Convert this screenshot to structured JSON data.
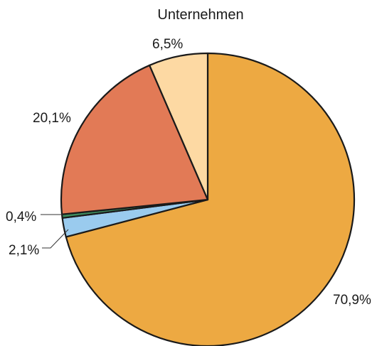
{
  "chart_data": {
    "type": "pie",
    "title": "Unternehmen",
    "start_angle_deg": 0,
    "direction": "clockwise",
    "slices": [
      {
        "label": "70,9%",
        "value": 70.9,
        "color": "#EDA942"
      },
      {
        "label": "2,1%",
        "value": 2.1,
        "color": "#9ACBEE"
      },
      {
        "label": "0,4%",
        "value": 0.4,
        "color": "#3E8C5E"
      },
      {
        "label": "20,1%",
        "value": 20.1,
        "color": "#E27A56"
      },
      {
        "label": "6,5%",
        "value": 6.5,
        "color": "#FDD9A3"
      }
    ],
    "outline_color": "#1a1a1a",
    "legend": "none"
  }
}
